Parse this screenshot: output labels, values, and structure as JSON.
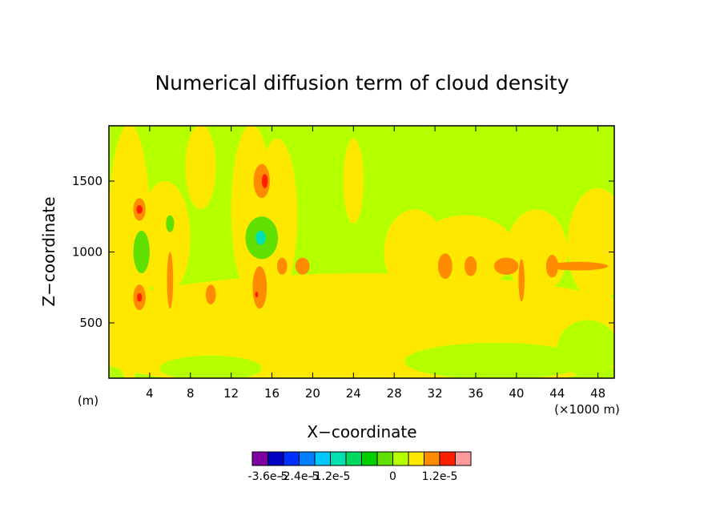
{
  "chart_data": {
    "type": "contour",
    "title": "Numerical diffusion term of cloud density",
    "x_label": "X−coordinate",
    "y_label": "Z−coordinate",
    "y_unit": "(m)",
    "x_unit": "(×1000 m)",
    "xlim": [
      0,
      49.6
    ],
    "ylim": [
      110,
      1890
    ],
    "xticks": [
      4,
      8,
      12,
      16,
      20,
      24,
      28,
      32,
      36,
      40,
      44,
      48
    ],
    "yticks": [
      500,
      1000,
      1500
    ],
    "colors": [
      "#7f00a0",
      "#0000c0",
      "#0030ff",
      "#0080ff",
      "#00c8ff",
      "#00e0b0",
      "#00d860",
      "#00d000",
      "#60e000",
      "#b4ff00",
      "#ffe800",
      "#ff8c00",
      "#ff2000",
      "#ff9a9a"
    ],
    "levels": [
      -3.6e-05,
      -3e-05,
      -2.4e-05,
      -1.8e-05,
      -1.2e-05,
      -9e-06,
      -6e-06,
      -3e-06,
      0,
      3e-06,
      6e-06,
      1.2e-05,
      1.6e-05
    ],
    "colorbar_ticks": [
      {
        "value": -3.6e-05,
        "label": "-3.6e-5"
      },
      {
        "value": -2.4e-05,
        "label": "-2.4e-5"
      },
      {
        "value": -1.2e-05,
        "label": "-1.2e-5"
      },
      {
        "value": 0,
        "label": "0"
      },
      {
        "value": 1.2e-05,
        "label": "1.2e-5"
      }
    ],
    "background_value": 1e-06,
    "regions": [
      {
        "x": 25,
        "z": 430,
        "rx": 30,
        "rz": 420,
        "value": 4e-06
      },
      {
        "x": 10,
        "z": 180,
        "rx": 5,
        "rz": 90,
        "value": 1e-06
      },
      {
        "x": 38,
        "z": 230,
        "rx": 9,
        "rz": 130,
        "value": 1e-06
      },
      {
        "x": 47,
        "z": 320,
        "rx": 3,
        "rz": 200,
        "value": 1e-06
      },
      {
        "x": 2,
        "z": 1000,
        "rx": 2.2,
        "rz": 900,
        "value": 4e-06
      },
      {
        "x": 5.5,
        "z": 1100,
        "rx": 2.5,
        "rz": 400,
        "value": 4e-06
      },
      {
        "x": 14,
        "z": 1300,
        "rx": 2,
        "rz": 600,
        "value": 4e-06
      },
      {
        "x": 16.5,
        "z": 1250,
        "rx": 2,
        "rz": 550,
        "value": 4e-06
      },
      {
        "x": 30,
        "z": 1000,
        "rx": 3,
        "rz": 300,
        "value": 4e-06
      },
      {
        "x": 35,
        "z": 1000,
        "rx": 5,
        "rz": 260,
        "value": 4e-06
      },
      {
        "x": 42,
        "z": 1000,
        "rx": 3,
        "rz": 300,
        "value": 4e-06
      },
      {
        "x": 48,
        "z": 1050,
        "rx": 3,
        "rz": 400,
        "value": 4e-06
      },
      {
        "x": 24,
        "z": 1500,
        "rx": 1,
        "rz": 300,
        "value": 4e-06
      },
      {
        "x": 9,
        "z": 1600,
        "rx": 1.5,
        "rz": 300,
        "value": 4e-06
      },
      {
        "x": 3.2,
        "z": 1000,
        "rx": 0.8,
        "rz": 150,
        "value": -2e-06
      },
      {
        "x": 15,
        "z": 1100,
        "rx": 1.6,
        "rz": 150,
        "value": -2e-06
      },
      {
        "x": 6,
        "z": 1200,
        "rx": 0.4,
        "rz": 60,
        "value": -2e-06
      },
      {
        "x": 14.9,
        "z": 1100,
        "rx": 0.5,
        "rz": 50,
        "value": -1e-05
      },
      {
        "x": 3,
        "z": 1300,
        "rx": 0.6,
        "rz": 80,
        "value": 8e-06
      },
      {
        "x": 3,
        "z": 680,
        "rx": 0.6,
        "rz": 90,
        "value": 8e-06
      },
      {
        "x": 15,
        "z": 1500,
        "rx": 0.8,
        "rz": 120,
        "value": 8e-06
      },
      {
        "x": 14.8,
        "z": 750,
        "rx": 0.7,
        "rz": 150,
        "value": 8e-06
      },
      {
        "x": 10,
        "z": 700,
        "rx": 0.5,
        "rz": 70,
        "value": 8e-06
      },
      {
        "x": 19,
        "z": 900,
        "rx": 0.7,
        "rz": 60,
        "value": 8e-06
      },
      {
        "x": 17,
        "z": 900,
        "rx": 0.5,
        "rz": 60,
        "value": 8e-06
      },
      {
        "x": 39,
        "z": 900,
        "rx": 1.2,
        "rz": 60,
        "value": 8e-06
      },
      {
        "x": 46,
        "z": 900,
        "rx": 3,
        "rz": 30,
        "value": 8e-06
      },
      {
        "x": 33,
        "z": 900,
        "rx": 0.7,
        "rz": 90,
        "value": 8e-06
      },
      {
        "x": 35.5,
        "z": 900,
        "rx": 0.6,
        "rz": 70,
        "value": 8e-06
      },
      {
        "x": 43.5,
        "z": 900,
        "rx": 0.6,
        "rz": 80,
        "value": 8e-06
      },
      {
        "x": 6,
        "z": 800,
        "rx": 0.3,
        "rz": 200,
        "value": 8e-06
      },
      {
        "x": 40.5,
        "z": 800,
        "rx": 0.3,
        "rz": 150,
        "value": 8e-06
      },
      {
        "x": 3,
        "z": 1300,
        "rx": 0.3,
        "rz": 30,
        "value": 1.3e-05
      },
      {
        "x": 3,
        "z": 680,
        "rx": 0.25,
        "rz": 30,
        "value": 1.3e-05
      },
      {
        "x": 15.3,
        "z": 1500,
        "rx": 0.3,
        "rz": 50,
        "value": 1.3e-05
      },
      {
        "x": 14.5,
        "z": 700,
        "rx": 0.15,
        "rz": 20,
        "value": 1.3e-05
      }
    ]
  }
}
